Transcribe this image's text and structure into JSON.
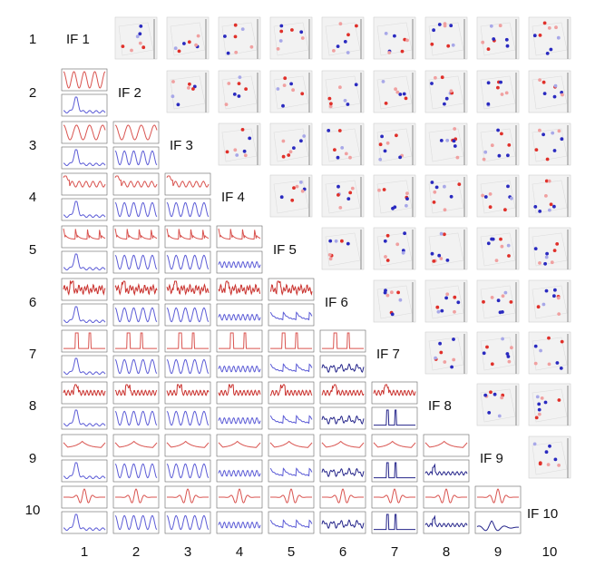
{
  "row_labels": [
    "1",
    "2",
    "3",
    "4",
    "5",
    "6",
    "7",
    "8",
    "9",
    "10"
  ],
  "col_labels": [
    "1",
    "2",
    "3",
    "4",
    "5",
    "6",
    "7",
    "8",
    "9",
    "10"
  ],
  "diagonal_labels": [
    "IF 1",
    "IF 2",
    "IF 3",
    "IF 4",
    "IF 5",
    "IF 6",
    "IF 7",
    "IF 8",
    "IF 9",
    "IF 10"
  ],
  "colors": {
    "red_signal": "#d9534f",
    "blue_signal": "#5b5bd6",
    "dark_blue": "#24248a",
    "cube_bg": "#f2f2f2",
    "frame": "#333333",
    "dot_red": "#e0302a",
    "dot_blue": "#2a2ac0",
    "dot_pink": "#f0a0a0",
    "dot_lavender": "#a8a8e8"
  }
}
